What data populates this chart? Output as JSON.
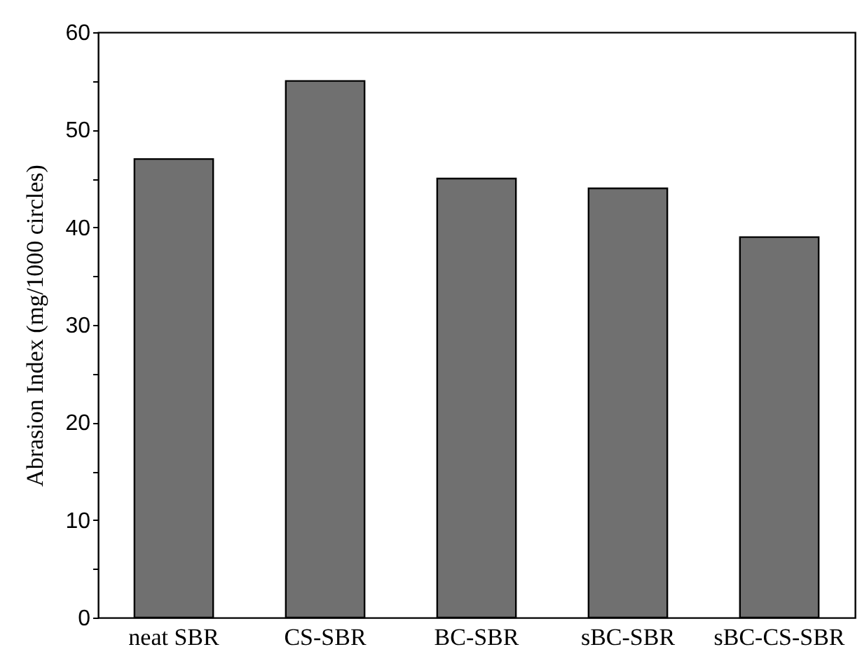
{
  "chart_data": {
    "type": "bar",
    "ylabel": "Abrasion Index (mg/1000 circles)",
    "categories": [
      "neat SBR",
      "CS-SBR",
      "BC-SBR",
      "sBC-SBR",
      "sBC-CS-SBR"
    ],
    "values": [
      47,
      55,
      45,
      44,
      39
    ],
    "color": "#707070",
    "ylim": [
      0,
      60
    ],
    "yticks": [
      0,
      {
        "value": 5,
        "label": null
      },
      10,
      {
        "value": 15,
        "label": null
      },
      20,
      {
        "value": 25,
        "label": null
      },
      30,
      {
        "value": 35,
        "label": null
      },
      40,
      {
        "value": 45,
        "label": null
      },
      50,
      {
        "value": 55,
        "label": null
      },
      60
    ],
    "grid": false,
    "legend": false
  }
}
